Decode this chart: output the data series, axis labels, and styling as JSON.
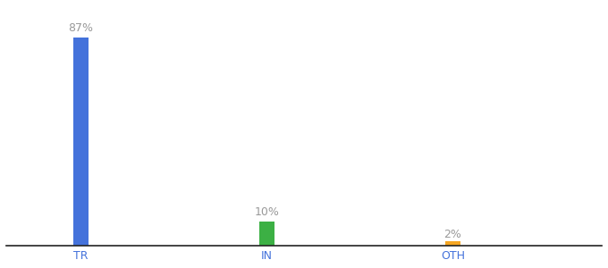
{
  "categories": [
    "TR",
    "IN",
    "OTH"
  ],
  "values": [
    87,
    10,
    2
  ],
  "bar_colors": [
    "#4472db",
    "#3cb044",
    "#f5a623"
  ],
  "labels": [
    "87%",
    "10%",
    "2%"
  ],
  "background_color": "#ffffff",
  "ylim": [
    0,
    100
  ],
  "bar_width": 0.08,
  "x_positions": [
    1,
    2,
    3
  ],
  "xlim": [
    0.6,
    3.8
  ],
  "label_fontsize": 9,
  "tick_fontsize": 9,
  "tick_color": "#4472db",
  "label_color": "#999999"
}
